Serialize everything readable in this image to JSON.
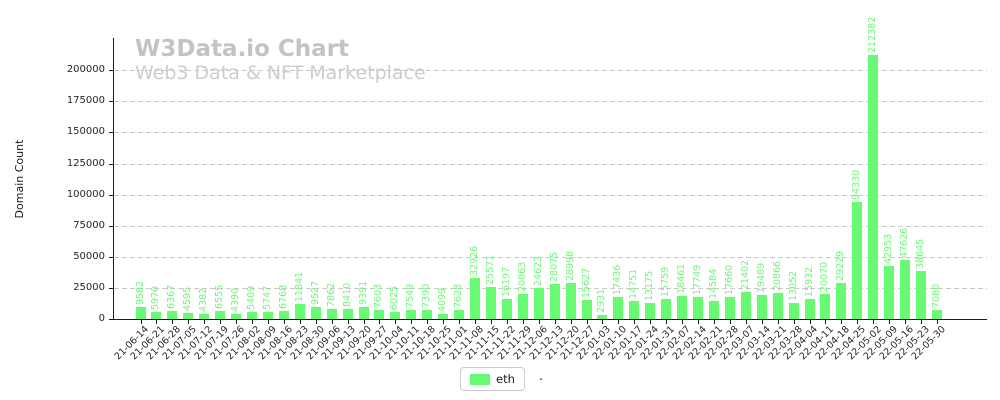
{
  "watermark": {
    "title": "W3Data.io Chart",
    "subtitle": "Web3 Data & NFT Marketplace"
  },
  "axes": {
    "ylabel": "Domain Count",
    "y_ticks": [
      0,
      25000,
      50000,
      75000,
      100000,
      125000,
      150000,
      175000,
      200000
    ],
    "x_tick_rotation": 45
  },
  "legend": {
    "label": "eth",
    "suffix_dot": "."
  },
  "colors": {
    "bar": "#69fa73",
    "value_label": "#69fa73",
    "grid": "#c9c9c9",
    "axis": "#1a1a1a",
    "tick_label": "#262626",
    "watermark_title": "#c3c3c3",
    "watermark_subtitle": "#cdcdcd",
    "legend_border": "#cccccc"
  },
  "chart_data": {
    "type": "bar",
    "series_name": "eth",
    "title": "",
    "xlabel": "",
    "ylabel": "Domain Count",
    "ylim": [
      0,
      226000
    ],
    "grid": "horizontal-dashed",
    "legend_position": "bottom-center",
    "bar_value_labels": "rotated-90-above-bar",
    "x": [
      "21-06-14",
      "21-06-21",
      "21-06-28",
      "21-07-05",
      "21-07-12",
      "21-07-19",
      "21-07-26",
      "21-08-02",
      "21-08-09",
      "21-08-16",
      "21-08-23",
      "21-08-30",
      "21-09-06",
      "21-09-13",
      "21-09-20",
      "21-09-27",
      "21-10-04",
      "21-10-11",
      "21-10-18",
      "21-10-25",
      "21-11-01",
      "21-11-08",
      "21-11-15",
      "21-11-22",
      "21-11-29",
      "21-12-06",
      "21-12-13",
      "21-12-20",
      "21-12-27",
      "22-01-03",
      "22-01-10",
      "22-01-17",
      "22-01-24",
      "22-01-31",
      "22-02-07",
      "22-02-14",
      "22-02-21",
      "22-02-28",
      "22-03-07",
      "22-03-14",
      "22-03-21",
      "22-03-28",
      "22-04-04",
      "22-04-11",
      "22-04-18",
      "22-04-25",
      "22-05-02",
      "22-05-09",
      "22-05-16",
      "22-05-23",
      "22-05-30"
    ],
    "values": [
      9582,
      5970,
      6367,
      4595,
      4382,
      6555,
      4390,
      5409,
      5747,
      6768,
      11841,
      9527,
      7862,
      8410,
      9391,
      7603,
      6025,
      7549,
      7390,
      4099,
      7628,
      32926,
      25571,
      16197,
      20063,
      24623,
      28075,
      28998,
      15627,
      2931,
      17436,
      14751,
      13175,
      15759,
      18461,
      17749,
      14584,
      17660,
      21402,
      19489,
      20866,
      13052,
      15932,
      20070,
      29229,
      94330,
      212382,
      42953,
      47626,
      38645,
      7080
    ]
  }
}
